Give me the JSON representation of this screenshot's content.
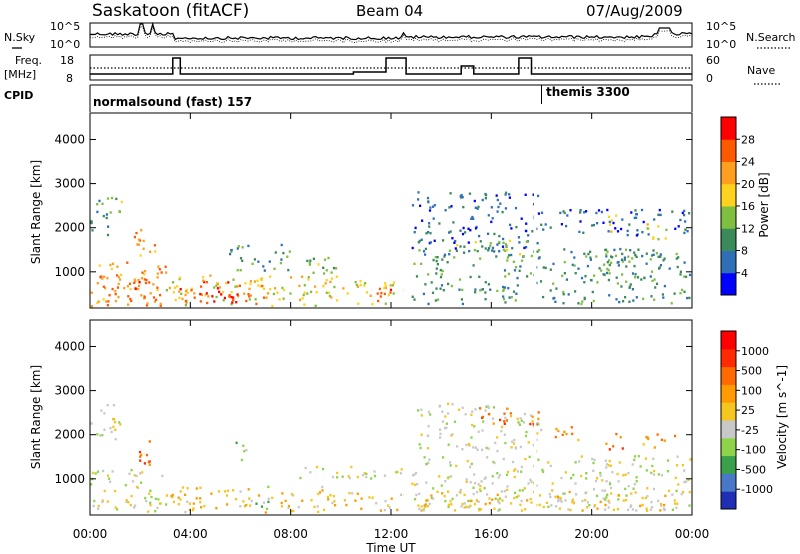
{
  "header": {
    "title": "Saskatoon (fitACF)",
    "beam": "Beam 04",
    "date": "07/Aug/2009"
  },
  "side_labels": {
    "nsky": "N.Sky",
    "freq_top": "Freq.",
    "freq_unit": "[MHz]",
    "cpid": "CPID",
    "nsearch": "N.Search",
    "nave": "Nave"
  },
  "strip_axes": {
    "noise_left_ticks": [
      "10^5",
      "10^0"
    ],
    "noise_right_ticks": [
      "10^5",
      "10^0"
    ],
    "freq_left_ticks": [
      "18",
      "8"
    ],
    "nave_right_ticks": [
      "60",
      "0"
    ]
  },
  "cpid_segments": [
    {
      "label": "normalsound (fast) 157",
      "start_hour": 0,
      "end_hour": 18.0
    },
    {
      "label": "themis 3300",
      "start_hour": 18.0,
      "end_hour": 24
    }
  ],
  "colors": {
    "power_scale": [
      "#0000ff",
      "#2f6fb8",
      "#3a8a5a",
      "#7fbf3f",
      "#ffd21f",
      "#ff9f1f",
      "#ff5a00",
      "#ff0000"
    ],
    "velocity_scale": [
      "#1f2fb5",
      "#4a78c8",
      "#3aa04a",
      "#8ed34a",
      "#c8c8c8",
      "#f5c520",
      "#ff9a00",
      "#ff6a00",
      "#ff2a00",
      "#ff0000"
    ]
  },
  "chart_data": {
    "type": "heatmap",
    "time_axis": {
      "xlabel": "Time UT",
      "ticks": [
        "00:00",
        "04:00",
        "08:00",
        "12:00",
        "16:00",
        "20:00",
        "00:00"
      ],
      "range_hours": [
        0,
        24
      ]
    },
    "noise_panel": {
      "left_label": "N.Sky",
      "right_label": "N.Search",
      "ylim_log10": [
        0,
        5
      ]
    },
    "frequency_panel": {
      "left_label": "Freq. [MHz]",
      "right_label": "Nave",
      "freq_ylim": [
        8,
        18
      ],
      "nave_ylim": [
        0,
        60
      ],
      "freq_steps": [
        {
          "start_hour": 0.0,
          "end_hour": 3.3,
          "value": 10
        },
        {
          "start_hour": 3.3,
          "end_hour": 3.6,
          "value": 18
        },
        {
          "start_hour": 3.6,
          "end_hour": 10.5,
          "value": 10
        },
        {
          "start_hour": 10.5,
          "end_hour": 11.8,
          "value": 11
        },
        {
          "start_hour": 11.8,
          "end_hour": 12.6,
          "value": 18
        },
        {
          "start_hour": 12.6,
          "end_hour": 14.8,
          "value": 10
        },
        {
          "start_hour": 14.8,
          "end_hour": 15.3,
          "value": 14
        },
        {
          "start_hour": 15.3,
          "end_hour": 17.1,
          "value": 10
        },
        {
          "start_hour": 17.1,
          "end_hour": 17.6,
          "value": 18
        },
        {
          "start_hour": 17.6,
          "end_hour": 24.0,
          "value": 10
        }
      ],
      "nave_level": 30
    },
    "power_panel": {
      "ylabel": "Slant Range [km]",
      "yticks": [
        "1000",
        "2000",
        "3000",
        "4000"
      ],
      "ylim": [
        180,
        4600
      ],
      "colorbar_label": "Power [dB]",
      "colorbar_ticks": [
        "28",
        "24",
        "20",
        "16",
        "12",
        "8",
        "4"
      ],
      "clim": [
        0,
        30
      ],
      "blobs": [
        {
          "t0": 0.0,
          "t1": 0.8,
          "r0": 1800,
          "r1": 2700,
          "level": 2
        },
        {
          "t0": 0.5,
          "t1": 1.3,
          "r0": 2300,
          "r1": 2700,
          "level": 3
        },
        {
          "t0": 0.0,
          "t1": 3.0,
          "r0": 200,
          "r1": 1200,
          "level": 5
        },
        {
          "t0": 0.3,
          "t1": 2.8,
          "r0": 300,
          "r1": 900,
          "level": 6
        },
        {
          "t0": 1.7,
          "t1": 2.7,
          "r0": 1300,
          "r1": 2000,
          "level": 5
        },
        {
          "t0": 3.0,
          "t1": 10.0,
          "r0": 200,
          "r1": 900,
          "level": 4
        },
        {
          "t0": 3.5,
          "t1": 7.0,
          "r0": 250,
          "r1": 800,
          "level": 6
        },
        {
          "t0": 4.0,
          "t1": 6.0,
          "r0": 300,
          "r1": 550,
          "level": 7
        },
        {
          "t0": 5.5,
          "t1": 8.0,
          "r0": 1000,
          "r1": 1600,
          "level": 2
        },
        {
          "t0": 8.5,
          "t1": 10.5,
          "r0": 900,
          "r1": 1300,
          "level": 3
        },
        {
          "t0": 10.0,
          "t1": 12.5,
          "r0": 250,
          "r1": 800,
          "level": 4
        },
        {
          "t0": 10.8,
          "t1": 12.2,
          "r0": 300,
          "r1": 600,
          "level": 6
        },
        {
          "t0": 12.8,
          "t1": 18.0,
          "r0": 1500,
          "r1": 2800,
          "level": 1
        },
        {
          "t0": 12.8,
          "t1": 23.9,
          "r0": 250,
          "r1": 1500,
          "level": 2
        },
        {
          "t0": 14.5,
          "t1": 17.5,
          "r0": 1300,
          "r1": 1700,
          "level": 3
        },
        {
          "t0": 18.0,
          "t1": 23.9,
          "r0": 1800,
          "r1": 2400,
          "level": 1
        },
        {
          "t0": 19.5,
          "t1": 22.0,
          "r0": 1100,
          "r1": 1500,
          "level": 2
        },
        {
          "t0": 20.5,
          "t1": 21.0,
          "r0": 1800,
          "r1": 2300,
          "level": 4
        },
        {
          "t0": 22.0,
          "t1": 23.2,
          "r0": 1700,
          "r1": 2100,
          "level": 4
        }
      ]
    },
    "velocity_panel": {
      "ylabel": "Slant Range [km]",
      "yticks": [
        "1000",
        "2000",
        "3000",
        "4000"
      ],
      "ylim": [
        180,
        4600
      ],
      "colorbar_label": "Velocity [m s^-1]",
      "colorbar_ticks": [
        "1000",
        "500",
        "100",
        "25",
        "-25",
        "-100",
        "-500",
        "-1000"
      ],
      "clim": [
        -1000,
        1000
      ],
      "blobs": [
        {
          "t0": 0.0,
          "t1": 1.2,
          "r0": 1800,
          "r1": 2700,
          "level": 4
        },
        {
          "t0": 0.0,
          "t1": 3.0,
          "r0": 200,
          "r1": 1200,
          "level": 4
        },
        {
          "t0": 1.8,
          "t1": 2.7,
          "r0": 1300,
          "r1": 1900,
          "level": 7
        },
        {
          "t0": 3.0,
          "t1": 10.0,
          "r0": 200,
          "r1": 800,
          "level": 5
        },
        {
          "t0": 6.5,
          "t1": 7.2,
          "r0": 300,
          "r1": 800,
          "level": 3
        },
        {
          "t0": 5.5,
          "t1": 6.2,
          "r0": 1400,
          "r1": 1800,
          "level": 3
        },
        {
          "t0": 8.0,
          "t1": 12.5,
          "r0": 950,
          "r1": 1250,
          "level": 4
        },
        {
          "t0": 10.0,
          "t1": 12.5,
          "r0": 250,
          "r1": 700,
          "level": 5
        },
        {
          "t0": 12.8,
          "t1": 23.9,
          "r0": 250,
          "r1": 1500,
          "level": 4
        },
        {
          "t0": 13.0,
          "t1": 18.0,
          "r0": 1600,
          "r1": 2700,
          "level": 4
        },
        {
          "t0": 15.5,
          "t1": 18.0,
          "r0": 2200,
          "r1": 2600,
          "level": 7
        },
        {
          "t0": 18.5,
          "t1": 19.5,
          "r0": 1700,
          "r1": 2200,
          "level": 6
        },
        {
          "t0": 20.5,
          "t1": 21.2,
          "r0": 1600,
          "r1": 2100,
          "level": 7
        },
        {
          "t0": 22.0,
          "t1": 23.3,
          "r0": 1600,
          "r1": 2000,
          "level": 6
        },
        {
          "t0": 13.0,
          "t1": 23.9,
          "r0": 250,
          "r1": 700,
          "level": 5
        }
      ]
    }
  }
}
